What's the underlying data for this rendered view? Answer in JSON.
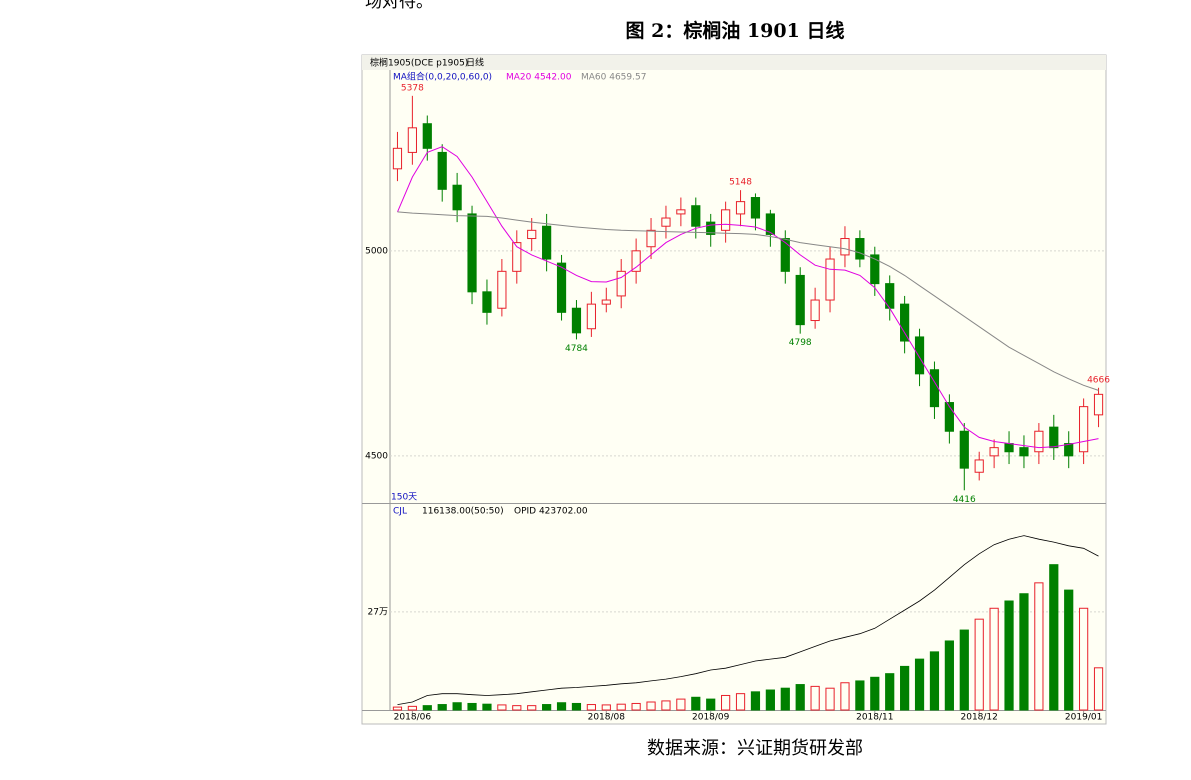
{
  "document": {
    "top_text": "场对待。",
    "figure_title": "图 2：棕榈油 1901 日线",
    "source": "数据来源：兴证期货研发部"
  },
  "chart_data": {
    "type": "candlestick",
    "header": "棕榈1905(DCE p1905)",
    "period": "日线",
    "ma_group": "MA组合(0,0,20,0,60,0)",
    "range_label": "150天",
    "categories": [
      null,
      "2018/06",
      null,
      null,
      null,
      null,
      null,
      null,
      null,
      null,
      null,
      null,
      null,
      null,
      "2018/08",
      null,
      null,
      null,
      null,
      null,
      null,
      "2018/09",
      null,
      null,
      null,
      null,
      null,
      null,
      null,
      null,
      null,
      null,
      "2018/11",
      null,
      null,
      null,
      null,
      null,
      null,
      "2018/12",
      null,
      null,
      null,
      null,
      null,
      null,
      "2019/01",
      null
    ],
    "open": [
      5200,
      5240,
      5310,
      5240,
      5160,
      5090,
      4900,
      4860,
      4950,
      5030,
      5060,
      4970,
      4860,
      4810,
      4870,
      4890,
      4950,
      5010,
      5060,
      5090,
      5110,
      5070,
      5050,
      5090,
      5130,
      5090,
      5030,
      4940,
      4830,
      4880,
      4990,
      5030,
      4990,
      4920,
      4870,
      4790,
      4710,
      4630,
      4560,
      4460,
      4500,
      4530,
      4520,
      4510,
      4570,
      4530,
      4510,
      4600
    ],
    "high": [
      5290,
      5378,
      5330,
      5260,
      5190,
      5110,
      4930,
      4980,
      5050,
      5080,
      5090,
      4990,
      4880,
      4900,
      4910,
      4980,
      5030,
      5080,
      5110,
      5130,
      5130,
      5090,
      5120,
      5148,
      5140,
      5100,
      5050,
      4960,
      4910,
      5010,
      5060,
      5050,
      5010,
      4940,
      4890,
      4810,
      4730,
      4650,
      4580,
      4510,
      4540,
      4560,
      4550,
      4580,
      4600,
      4560,
      4640,
      4666
    ],
    "low": [
      5170,
      5210,
      5220,
      5120,
      5070,
      4870,
      4820,
      4840,
      4920,
      5000,
      4950,
      4830,
      4784,
      4790,
      4850,
      4860,
      4920,
      4980,
      5030,
      5060,
      5030,
      5010,
      5020,
      5060,
      5050,
      5010,
      4920,
      4798,
      4810,
      4850,
      4960,
      4960,
      4890,
      4830,
      4750,
      4670,
      4590,
      4530,
      4416,
      4440,
      4470,
      4480,
      4470,
      4480,
      4490,
      4470,
      4480,
      4570
    ],
    "close": [
      5250,
      5300,
      5250,
      5150,
      5100,
      4900,
      4850,
      4950,
      5020,
      5050,
      4980,
      4850,
      4800,
      4870,
      4880,
      4950,
      5000,
      5050,
      5080,
      5100,
      5060,
      5040,
      5100,
      5120,
      5080,
      5040,
      4950,
      4820,
      4880,
      4980,
      5030,
      4980,
      4920,
      4860,
      4780,
      4700,
      4620,
      4560,
      4470,
      4490,
      4520,
      4510,
      4500,
      4560,
      4520,
      4500,
      4620,
      4650
    ],
    "up_color": "#e8202a",
    "down_color": "#008000",
    "ylim": [
      4385,
      5441
    ],
    "yticks": [
      4500,
      5000
    ],
    "grid": true,
    "series": [
      {
        "name": "MA20 4542.00",
        "color": "#e000e0",
        "values": [
          5095,
          5180,
          5240,
          5254,
          5230,
          5180,
          5120,
          5060,
          5010,
          4990,
          4975,
          4960,
          4940,
          4925,
          4924,
          4935,
          4960,
          4990,
          5020,
          5040,
          5055,
          5063,
          5065,
          5062,
          5058,
          5045,
          5020,
          4990,
          4965,
          4955,
          4953,
          4940,
          4910,
          4860,
          4800,
          4740,
          4680,
          4620,
          4570,
          4545,
          4535,
          4530,
          4525,
          4520,
          4522,
          4528,
          4535,
          4542
        ]
      },
      {
        "name": "MA60 4659.57",
        "color": "#888888",
        "values": [
          5095,
          5092,
          5090,
          5088,
          5086,
          5085,
          5084,
          5080,
          5075,
          5070,
          5066,
          5062,
          5058,
          5055,
          5052,
          5050,
          5049,
          5048,
          5047,
          5046,
          5045,
          5044,
          5043,
          5042,
          5040,
          5035,
          5028,
          5020,
          5015,
          5010,
          5005,
          4995,
          4980,
          4962,
          4940,
          4915,
          4890,
          4865,
          4840,
          4815,
          4790,
          4765,
          4745,
          4725,
          4705,
          4688,
          4672,
          4659.57
        ]
      }
    ],
    "volume": {
      "name": "CJL",
      "label": "116138.00(50:50)",
      "values": [
        8000,
        10000,
        12000,
        15000,
        20000,
        18000,
        16000,
        14000,
        12000,
        12000,
        15000,
        20000,
        18000,
        15000,
        14000,
        16000,
        18000,
        22000,
        25000,
        30000,
        35000,
        30000,
        40000,
        45000,
        50000,
        55000,
        60000,
        70000,
        65000,
        60000,
        75000,
        80000,
        90000,
        100000,
        120000,
        140000,
        160000,
        190000,
        220000,
        250000,
        280000,
        300000,
        320000,
        350000,
        400000,
        330000,
        280000,
        116138
      ],
      "ylim": [
        0,
        567000
      ],
      "yticks": [
        {
          "value": 270000,
          "label": "27万"
        }
      ]
    },
    "open_interest": {
      "name": "OPID 423702.00",
      "color": "#000000",
      "values": [
        15000,
        22000,
        40000,
        45000,
        45000,
        42000,
        40000,
        42000,
        45000,
        50000,
        55000,
        60000,
        62000,
        65000,
        68000,
        72000,
        75000,
        80000,
        85000,
        92000,
        100000,
        110000,
        115000,
        125000,
        135000,
        140000,
        145000,
        160000,
        175000,
        190000,
        200000,
        210000,
        225000,
        250000,
        275000,
        300000,
        330000,
        365000,
        400000,
        430000,
        455000,
        470000,
        480000,
        470000,
        462000,
        452000,
        445000,
        423702
      ]
    }
  }
}
